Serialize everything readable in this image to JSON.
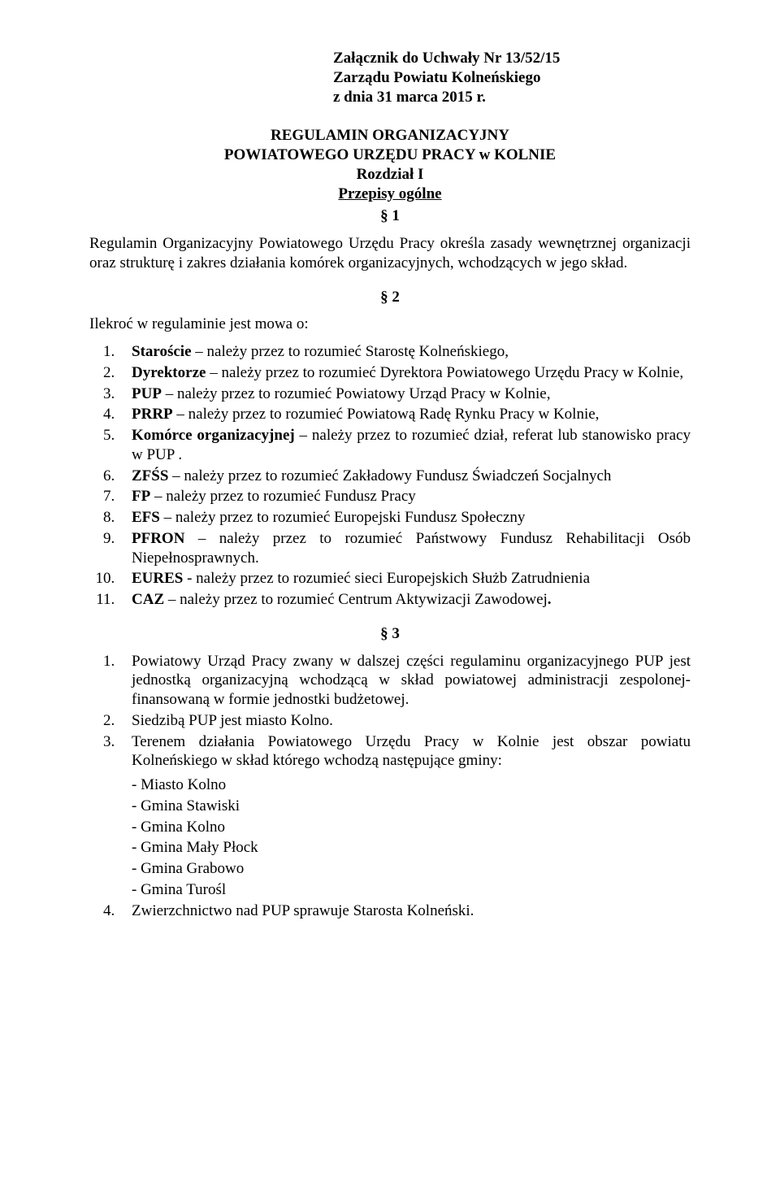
{
  "header": {
    "line1": "Załącznik do Uchwały Nr 13/52/15",
    "line2": "Zarządu Powiatu Kolneńskiego",
    "line3": "z dnia 31 marca 2015 r."
  },
  "title": {
    "line1": "REGULAMIN ORGANIZACYJNY",
    "line2": "POWIATOWEGO URZĘDU PRACY w KOLNIE",
    "chapter": "Rozdział I",
    "subtitle": "Przepisy ogólne"
  },
  "s1": {
    "num": "§ 1",
    "text": "Regulamin Organizacyjny Powiatowego Urzędu Pracy określa zasady wewnętrznej organizacji oraz strukturę i zakres działania komórek organizacyjnych, wchodzących w jego skład."
  },
  "s2": {
    "num": "§ 2",
    "lead": "Ilekroć w regulaminie jest mowa o:",
    "items": [
      {
        "term": "Staroście",
        "rest": " – należy przez to rozumieć Starostę Kolneńskiego,"
      },
      {
        "term": "Dyrektorze",
        "rest": " – należy przez to rozumieć Dyrektora Powiatowego Urzędu Pracy w Kolnie,"
      },
      {
        "term": "PUP",
        "rest": " – należy przez to rozumieć Powiatowy Urząd Pracy w Kolnie,"
      },
      {
        "term": "PRRP",
        "rest": " – należy przez to rozumieć Powiatową Radę Rynku Pracy w Kolnie,"
      },
      {
        "term": "Komórce organizacyjnej",
        "rest": " – należy przez to rozumieć dział, referat lub stanowisko pracy w PUP ."
      },
      {
        "term": "ZFŚS",
        "rest": " – należy przez to rozumieć Zakładowy  Fundusz Świadczeń Socjalnych"
      },
      {
        "term": "FP",
        "rest": " – należy  przez to rozumieć Fundusz Pracy"
      },
      {
        "term": "EFS",
        "rest": " – należy przez to rozumieć Europejski Fundusz Społeczny"
      },
      {
        "term": "PFRON",
        "rest": " –  należy przez to rozumieć Państwowy Fundusz Rehabilitacji Osób Niepełnosprawnych."
      },
      {
        "term": "EURES",
        "rest": "  - należy przez to rozumieć sieci Europejskich Służb Zatrudnienia"
      },
      {
        "term": "CAZ",
        "rest": " – należy przez to rozumieć Centrum Aktywizacji Zawodowej",
        "bold_tail": "."
      }
    ]
  },
  "s3": {
    "num": "§ 3",
    "item1": "Powiatowy Urząd Pracy zwany w dalszej części regulaminu organizacyjnego PUP jest jednostką organizacyjną wchodzącą w skład powiatowej administracji zespolonej- finansowaną w formie jednostki budżetowej.",
    "item2": "Siedzibą PUP jest miasto Kolno.",
    "item3": "Terenem działania Powiatowego Urzędu Pracy w Kolnie jest obszar powiatu Kolneńskiego w skład którego wchodzą następujące gminy:",
    "gminy": [
      "- Miasto Kolno",
      "- Gmina Stawiski",
      "- Gmina Kolno",
      "- Gmina Mały Płock",
      "- Gmina Grabowo",
      "- Gmina Turośl"
    ],
    "item4": "Zwierzchnictwo nad PUP sprawuje Starosta Kolneński."
  }
}
